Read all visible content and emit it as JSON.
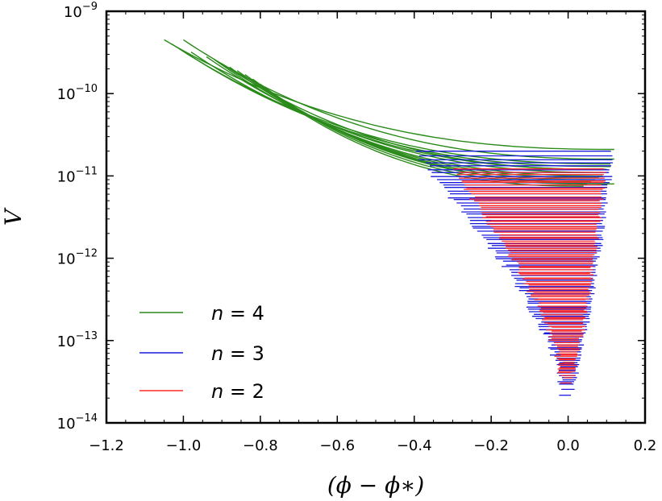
{
  "chart_data": {
    "type": "line",
    "xlabel": "(ϕ − ϕ∗)",
    "ylabel": "V",
    "xlim": [
      -1.2,
      0.2
    ],
    "ylim": [
      1e-14,
      1e-09
    ],
    "yscale": "log",
    "xticks": [
      -1.2,
      -1.0,
      -0.8,
      -0.6,
      -0.4,
      -0.2,
      0.0,
      0.2
    ],
    "xtick_labels": [
      "−1.2",
      "−1.0",
      "−0.8",
      "−0.6",
      "−0.4",
      "−0.2",
      "0.0",
      "0.2"
    ],
    "yticks": [
      {
        "base": "10",
        "exp": "−9",
        "value": 1e-09
      },
      {
        "base": "10",
        "exp": "−10",
        "value": 1e-10
      },
      {
        "base": "10",
        "exp": "−11",
        "value": 1e-11
      },
      {
        "base": "10",
        "exp": "−12",
        "value": 1e-12
      },
      {
        "base": "10",
        "exp": "−13",
        "value": 1e-13
      },
      {
        "base": "10",
        "exp": "−14",
        "value": 1e-14
      }
    ],
    "grid": false,
    "legend_position": "lower-left",
    "series": [
      {
        "name": "n = 4",
        "color": "#2a8a1a",
        "curves": [
          {
            "x_start": -1.05,
            "x_end": 0.12,
            "y_start": 4.5e-10,
            "y_end": 2.1e-11
          },
          {
            "x_start": -1.0,
            "x_end": 0.12,
            "y_start": 4.5e-10,
            "y_end": 1.6e-11
          },
          {
            "x_start": -1.03,
            "x_end": 0.11,
            "y_start": 4e-10,
            "y_end": 1.4e-11
          },
          {
            "x_start": -1.01,
            "x_end": 0.11,
            "y_start": 3.5e-10,
            "y_end": 1.3e-11
          },
          {
            "x_start": -0.98,
            "x_end": 0.1,
            "y_start": 3.2e-10,
            "y_end": 1.2e-11
          },
          {
            "x_start": -0.94,
            "x_end": 0.1,
            "y_start": 2.8e-10,
            "y_end": 1.1e-11
          },
          {
            "x_start": -0.92,
            "x_end": 0.09,
            "y_start": 2.6e-10,
            "y_end": 1e-11
          },
          {
            "x_start": -0.9,
            "x_end": 0.1,
            "y_start": 2.3e-10,
            "y_end": 1.2e-11
          },
          {
            "x_start": -0.88,
            "x_end": 0.08,
            "y_start": 2.1e-10,
            "y_end": 9.5e-12
          },
          {
            "x_start": -0.86,
            "x_end": 0.12,
            "y_start": 1.9e-10,
            "y_end": 8e-12
          },
          {
            "x_start": -0.84,
            "x_end": 0.07,
            "y_start": 1.7e-10,
            "y_end": 9e-12
          },
          {
            "x_start": -0.82,
            "x_end": 0.06,
            "y_start": 1.5e-10,
            "y_end": 8.5e-12
          },
          {
            "x_start": -0.8,
            "x_end": 0.05,
            "y_start": 1.3e-10,
            "y_end": 8e-12
          },
          {
            "x_start": -0.78,
            "x_end": 0.04,
            "y_start": 1.1e-10,
            "y_end": 7.5e-12
          }
        ]
      },
      {
        "name": "n = 3",
        "color": "#1a1adc",
        "y_top": 2e-11,
        "y_bottom": 2.2e-14,
        "x_left_top": -0.38,
        "x_right": 0.11,
        "x_center": 0.0
      },
      {
        "name": "n = 2",
        "color": "#ff2a2a",
        "y_top": 1.2e-11,
        "y_bottom": 3e-14,
        "x_left_top": -0.28,
        "x_right": 0.09,
        "x_center": 0.0
      }
    ]
  }
}
